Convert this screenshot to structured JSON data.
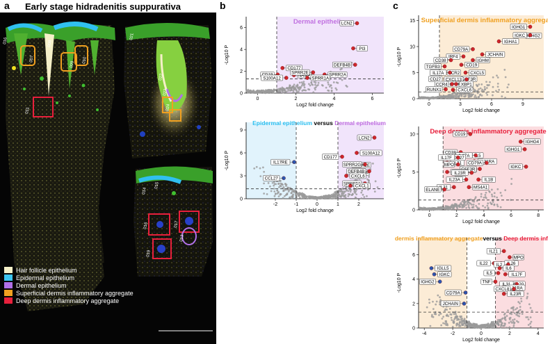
{
  "panel_a": {
    "letter": "a",
    "title": "Early stage hidradenitis suppurativa",
    "region_labels": [
      "016",
      "007",
      "008",
      "009",
      "010",
      "011",
      "021",
      "022",
      "023",
      "024",
      "014",
      "015",
      "016",
      "017",
      "019",
      "013"
    ],
    "legend": [
      {
        "label": "Hair follicle epithelium",
        "color": "#f5f0c8"
      },
      {
        "label": "Epidermal epithelium",
        "color": "#3cc4f0"
      },
      {
        "label": "Dermal epithelium",
        "color": "#b070e8"
      },
      {
        "label": "Superficial dermis inflammatory aggregate",
        "color": "#f0a020"
      },
      {
        "label": "Deep dermis inflammatory aggregate",
        "color": "#e8203c"
      }
    ]
  },
  "panel_b": {
    "letter": "b"
  },
  "panel_c": {
    "letter": "c"
  },
  "chart_data": [
    {
      "type": "scatter",
      "panel": "b1",
      "title": "Dermal epithelium",
      "title_color": "#c070e0",
      "shade_color": "#f1e4fb",
      "xlabel": "Log2 fold change",
      "ylabel": "-Log10 P",
      "xlim": [
        -0.6,
        6.6
      ],
      "ylim": [
        0,
        7
      ],
      "xticks": [
        0,
        2,
        4,
        6
      ],
      "yticks": [
        0,
        2,
        4,
        6
      ],
      "vline": 1,
      "hline": 1.3,
      "shade": "right",
      "points_left": [],
      "points_right": [
        {
          "label": "LCN2",
          "x": 5.2,
          "y": 6.4
        },
        {
          "label": "PI3",
          "x": 5.0,
          "y": 4.1
        },
        {
          "label": "DEFB4B",
          "x": 5.1,
          "y": 2.6
        },
        {
          "label": "CD177",
          "x": 1.3,
          "y": 2.3
        },
        {
          "label": "CD19",
          "x": 1.05,
          "y": 1.7
        },
        {
          "label": "NAMPT",
          "x": 1.9,
          "y": 1.65
        },
        {
          "label": "SPRR2E",
          "x": 2.9,
          "y": 1.9
        },
        {
          "label": "SPRR2A",
          "x": 3.5,
          "y": 1.7
        },
        {
          "label": "S100A12",
          "x": 1.5,
          "y": 1.4
        },
        {
          "label": "SPRR1A",
          "x": 2.6,
          "y": 1.4
        }
      ]
    },
    {
      "type": "scatter",
      "panel": "b2",
      "title_parts": [
        {
          "text": "Epidermal epithelium",
          "color": "#30c0f0"
        },
        {
          "text": " versus ",
          "color": "#000000"
        },
        {
          "text": "Dermal epithelium",
          "color": "#c070e0"
        }
      ],
      "left_shade_color": "#e1f3fc",
      "shade_color": "#f1e4fb",
      "xlabel": "Log2 fold change",
      "ylabel": "-Log10 P",
      "xlim": [
        -3.4,
        3.2
      ],
      "ylim": [
        0,
        10
      ],
      "xticks": [
        -2,
        -1,
        0,
        1,
        2
      ],
      "yticks": [
        0,
        3,
        6,
        9
      ],
      "vline": 1,
      "vline2": -1,
      "hline": 1.3,
      "shade": "both",
      "points_left": [
        {
          "label": "IL17RE",
          "x": -1.1,
          "y": 4.8
        },
        {
          "label": "CCL27",
          "x": -1.6,
          "y": 2.7
        }
      ],
      "points_right": [
        {
          "label": "LCN2",
          "x": 2.75,
          "y": 8.0
        },
        {
          "label": "S100A12",
          "x": 1.9,
          "y": 6.0
        },
        {
          "label": "CD177",
          "x": 1.2,
          "y": 5.5
        },
        {
          "label": "SPRR2E",
          "x": 1.5,
          "y": 4.4
        },
        {
          "label": "SPRR2G",
          "x": 2.3,
          "y": 4.5
        },
        {
          "label": "SPRR",
          "x": 1.7,
          "y": 3.4
        },
        {
          "label": "DEFB4B",
          "x": 2.5,
          "y": 3.6
        },
        {
          "label": "CXCL6",
          "x": 1.4,
          "y": 3.0
        },
        {
          "label": "SPRR2A",
          "x": 2.3,
          "y": 2.0
        },
        {
          "label": "CXCL1",
          "x": 1.6,
          "y": 1.7
        }
      ]
    },
    {
      "type": "scatter",
      "panel": "c1",
      "title": "Superficial dermis inflammatory aggregate",
      "title_color": "#f0a020",
      "shade_color": "#fcecd6",
      "xlabel": "Log2 fold change",
      "ylabel": "-Log10 P",
      "xlim": [
        -1,
        11
      ],
      "ylim": [
        0,
        16
      ],
      "xticks": [
        0,
        3,
        6,
        9
      ],
      "yticks": [
        0,
        5,
        10,
        15
      ],
      "vline": 1,
      "hline": 1.3,
      "shade": "right",
      "points_left": [],
      "points_right": [
        {
          "label": "IGHG1",
          "x": 9.7,
          "y": 13.8
        },
        {
          "label": "IGHG2",
          "x": 8.9,
          "y": 12.1
        },
        {
          "label": "IGKC",
          "x": 9.7,
          "y": 12.2
        },
        {
          "label": "IGHA1",
          "x": 6.7,
          "y": 11.0
        },
        {
          "label": "CD79A",
          "x": 4.2,
          "y": 9.5
        },
        {
          "label": "JCHAIN",
          "x": 5.1,
          "y": 8.5
        },
        {
          "label": "IRF4",
          "x": 3.3,
          "y": 8.1
        },
        {
          "label": "IGHM",
          "x": 4.2,
          "y": 7.4
        },
        {
          "label": "CD38",
          "x": 2.1,
          "y": 7.4
        },
        {
          "label": "CD19",
          "x": 3.1,
          "y": 6.5
        },
        {
          "label": "TGFB3",
          "x": 1.5,
          "y": 6.2
        },
        {
          "label": "CCR2",
          "x": 1.4,
          "y": 5.0
        },
        {
          "label": "IL17A",
          "x": 2.0,
          "y": 5.0
        },
        {
          "label": "CXCL5",
          "x": 3.5,
          "y": 5.0
        },
        {
          "label": "CD27",
          "x": 1.6,
          "y": 3.8
        },
        {
          "label": "CSF3R",
          "x": 2.7,
          "y": 3.8
        },
        {
          "label": "CXCL13",
          "x": 3.6,
          "y": 3.7
        },
        {
          "label": "BATF3",
          "x": 1.5,
          "y": 2.8
        },
        {
          "label": "CCR4",
          "x": 2.2,
          "y": 2.8
        },
        {
          "label": "XBP1",
          "x": 2.6,
          "y": 2.8
        },
        {
          "label": "RUNX1",
          "x": 1.6,
          "y": 1.8
        },
        {
          "label": "CXCL6",
          "x": 2.3,
          "y": 1.7
        }
      ]
    },
    {
      "type": "scatter",
      "panel": "c2",
      "title": "Deep dermis inflammatory aggregate",
      "title_color": "#e8203c",
      "shade_color": "#fbdde0",
      "xlabel": "Log2 fold change",
      "ylabel": "-Log10 P",
      "xlim": [
        -0.8,
        8.4
      ],
      "ylim": [
        0,
        11
      ],
      "xticks": [
        0,
        2,
        4,
        6,
        8
      ],
      "yticks": [
        0,
        5,
        10
      ],
      "vline": 1,
      "hline": 1.3,
      "shade": "right",
      "points_left": [],
      "points_right": [
        {
          "label": "CD19",
          "x": 3.0,
          "y": 10.0
        },
        {
          "label": "IGHG4",
          "x": 6.7,
          "y": 9.0
        },
        {
          "label": "IGHG1",
          "x": 7.0,
          "y": 8.0
        },
        {
          "label": "IGKC",
          "x": 7.1,
          "y": 5.7
        },
        {
          "label": "CD38",
          "x": 2.3,
          "y": 7.6
        },
        {
          "label": "IL5",
          "x": 2.9,
          "y": 7.2
        },
        {
          "label": "IL17A",
          "x": 3.4,
          "y": 7.2
        },
        {
          "label": "CD27",
          "x": 1.4,
          "y": 6.9
        },
        {
          "label": "IL17F",
          "x": 2.1,
          "y": 6.9
        },
        {
          "label": "IL31RA",
          "x": 3.3,
          "y": 6.4
        },
        {
          "label": "CD79A",
          "x": 4.2,
          "y": 6.2
        },
        {
          "label": "IL21",
          "x": 1.3,
          "y": 6.2
        },
        {
          "label": "MPO",
          "x": 2.1,
          "y": 6.0
        },
        {
          "label": "IL6",
          "x": 2.4,
          "y": 5.3
        },
        {
          "label": "CSF3R",
          "x": 3.7,
          "y": 5.4
        },
        {
          "label": "CD177",
          "x": 1.3,
          "y": 5.0
        },
        {
          "label": "IL23R",
          "x": 3.1,
          "y": 4.9
        },
        {
          "label": "IL6",
          "x": 1.6,
          "y": 4.1
        },
        {
          "label": "IL23A",
          "x": 2.7,
          "y": 4.0
        },
        {
          "label": "IL1B",
          "x": 3.6,
          "y": 4.0
        },
        {
          "label": "IL31",
          "x": 1.8,
          "y": 3.0
        },
        {
          "label": "MS4A1",
          "x": 2.9,
          "y": 3.0
        },
        {
          "label": "ELANE",
          "x": 1.1,
          "y": 2.7
        }
      ]
    },
    {
      "type": "scatter",
      "panel": "c3",
      "title_parts": [
        {
          "text": "Superficial dermis inflammatory aggregate",
          "color": "#f0a020"
        },
        {
          "text": "versus ",
          "color": "#000000"
        },
        {
          "text": "Deep dermis inflammatory aggregate",
          "color": "#e8203c"
        }
      ],
      "left_shade_color": "#fcecd6",
      "shade_color": "#fbdde0",
      "xlabel": "Log2 fold change",
      "ylabel": "-Log10 P",
      "xlim": [
        -4.4,
        4.4
      ],
      "ylim": [
        0,
        7.4
      ],
      "xticks": [
        -4,
        -2,
        0,
        2,
        4
      ],
      "yticks": [
        0,
        2,
        4,
        6
      ],
      "vline": 1,
      "vline2": -1,
      "hline": 1.3,
      "shade": "both",
      "points_left": [
        {
          "label": "IGLL5",
          "x": -3.5,
          "y": 4.9
        },
        {
          "label": "IGKC",
          "x": -3.3,
          "y": 4.4
        },
        {
          "label": "IGHG2",
          "x": -2.9,
          "y": 3.8
        },
        {
          "label": "CD79A",
          "x": -1.1,
          "y": 2.9
        },
        {
          "label": "JCHAIN",
          "x": -1.2,
          "y": 2.0
        }
      ],
      "points_right": [
        {
          "label": "IL21",
          "x": 1.6,
          "y": 6.3
        },
        {
          "label": "MPO",
          "x": 2.0,
          "y": 5.8
        },
        {
          "label": "IL22",
          "x": 0.9,
          "y": 5.3
        },
        {
          "label": "IL26",
          "x": 1.4,
          "y": 5.3
        },
        {
          "label": "IL2",
          "x": 1.9,
          "y": 5.2
        },
        {
          "label": "IL6",
          "x": 1.3,
          "y": 4.9
        },
        {
          "label": "IL5",
          "x": 1.2,
          "y": 4.5
        },
        {
          "label": "IL17F",
          "x": 1.7,
          "y": 4.4
        },
        {
          "label": "TNF",
          "x": 1.0,
          "y": 3.8
        },
        {
          "label": "CCL20",
          "x": 1.7,
          "y": 3.6
        },
        {
          "label": "IL31",
          "x": 2.5,
          "y": 3.6
        },
        {
          "label": "IL31RA",
          "x": 1.5,
          "y": 3.3
        },
        {
          "label": "CXCL8",
          "x": 2.3,
          "y": 3.2
        },
        {
          "label": "IL23R",
          "x": 1.6,
          "y": 2.8
        }
      ]
    }
  ]
}
